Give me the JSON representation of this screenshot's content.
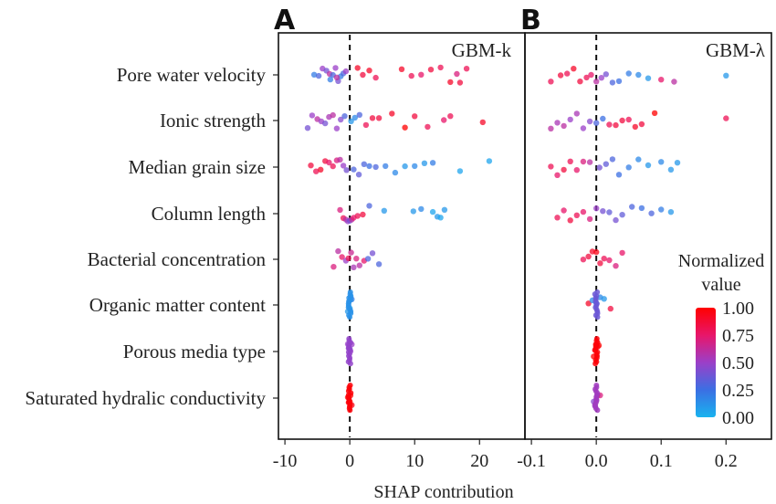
{
  "chart_data": [
    {
      "type": "scatter",
      "subtype": "shap_beeswarm",
      "panel_letter": "A",
      "model_label": "GBM-k",
      "xlim": [
        -11,
        27
      ],
      "xticks": [
        -10,
        0,
        10,
        20
      ],
      "xtick_labels": [
        "-10",
        "0",
        "10",
        "20"
      ],
      "zero_line": true,
      "features": [
        {
          "name": "Pore water velocity",
          "points": [
            [
              -5.5,
              0.2
            ],
            [
              -4.8,
              0.3
            ],
            [
              -4.2,
              0.5
            ],
            [
              -3.6,
              0.4
            ],
            [
              -3.1,
              0.6
            ],
            [
              -2.6,
              0.3
            ],
            [
              -2.2,
              0.5
            ],
            [
              -1.8,
              0.4
            ],
            [
              -1.4,
              0.2
            ],
            [
              -1.0,
              0.3
            ],
            [
              -0.6,
              0.5
            ],
            [
              -3.0,
              0.2
            ],
            [
              -2.0,
              0.6
            ],
            [
              1.2,
              0.9
            ],
            [
              2.0,
              0.85
            ],
            [
              3.0,
              0.9
            ],
            [
              4.0,
              0.8
            ],
            [
              8.0,
              0.9
            ],
            [
              9.5,
              0.8
            ],
            [
              11.0,
              0.75
            ],
            [
              12.5,
              0.85
            ],
            [
              14.0,
              0.8
            ],
            [
              15.5,
              0.9
            ],
            [
              17.0,
              0.85
            ],
            [
              18.0,
              0.8
            ],
            [
              16.5,
              0.7
            ]
          ]
        },
        {
          "name": "Ionic strength",
          "points": [
            [
              -6.5,
              0.4
            ],
            [
              -5.8,
              0.5
            ],
            [
              -5.0,
              0.6
            ],
            [
              -4.4,
              0.5
            ],
            [
              -3.8,
              0.4
            ],
            [
              -3.2,
              0.55
            ],
            [
              -2.6,
              0.6
            ],
            [
              -2.0,
              0.5
            ],
            [
              -1.4,
              0.45
            ],
            [
              -0.8,
              0.3
            ],
            [
              0.2,
              0.1
            ],
            [
              0.8,
              0.15
            ],
            [
              1.5,
              0.3
            ],
            [
              2.5,
              0.8
            ],
            [
              3.5,
              0.85
            ],
            [
              4.5,
              0.85
            ],
            [
              6.5,
              0.9
            ],
            [
              8.5,
              1.0
            ],
            [
              10.0,
              0.85
            ],
            [
              12.0,
              0.8
            ],
            [
              14.5,
              0.75
            ],
            [
              15.5,
              0.8
            ],
            [
              20.5,
              0.9
            ]
          ]
        },
        {
          "name": "Median grain size",
          "points": [
            [
              -6.0,
              0.85
            ],
            [
              -5.2,
              0.8
            ],
            [
              -4.5,
              0.9
            ],
            [
              -3.8,
              0.85
            ],
            [
              -3.2,
              0.75
            ],
            [
              -2.6,
              0.8
            ],
            [
              -2.0,
              0.7
            ],
            [
              -1.5,
              0.6
            ],
            [
              -1.0,
              0.5
            ],
            [
              -0.5,
              0.4
            ],
            [
              0.6,
              0.3
            ],
            [
              1.4,
              0.35
            ],
            [
              2.2,
              0.3
            ],
            [
              3.0,
              0.25
            ],
            [
              4.0,
              0.3
            ],
            [
              5.5,
              0.2
            ],
            [
              7.0,
              0.15
            ],
            [
              8.5,
              0.1
            ],
            [
              10.0,
              0.15
            ],
            [
              11.5,
              0.1
            ],
            [
              12.8,
              0.2
            ],
            [
              17.0,
              0.05
            ],
            [
              21.5,
              0.05
            ]
          ]
        },
        {
          "name": "Column length",
          "points": [
            [
              -1.5,
              0.7
            ],
            [
              -1.0,
              0.8
            ],
            [
              -0.6,
              0.6
            ],
            [
              -0.3,
              0.5
            ],
            [
              0.0,
              0.4
            ],
            [
              0.3,
              0.6
            ],
            [
              0.6,
              0.75
            ],
            [
              1.2,
              0.8
            ],
            [
              2.0,
              0.85
            ],
            [
              3.0,
              0.3
            ],
            [
              5.3,
              0.1
            ],
            [
              9.8,
              0.1
            ],
            [
              11.0,
              0.15
            ],
            [
              12.8,
              0.05
            ],
            [
              13.5,
              0.1
            ],
            [
              14.0,
              0.05
            ],
            [
              14.6,
              0.1
            ]
          ]
        },
        {
          "name": "Bacterial concentration",
          "points": [
            [
              -2.5,
              0.7
            ],
            [
              -1.8,
              0.6
            ],
            [
              -1.2,
              0.75
            ],
            [
              -0.6,
              0.5
            ],
            [
              -0.2,
              0.8
            ],
            [
              0.2,
              0.65
            ],
            [
              0.6,
              0.55
            ],
            [
              1.0,
              0.7
            ],
            [
              1.5,
              0.6
            ],
            [
              2.2,
              0.75
            ],
            [
              2.8,
              0.3
            ],
            [
              3.5,
              0.4
            ],
            [
              4.5,
              0.3
            ]
          ]
        },
        {
          "name": "Organic matter content",
          "points": [
            [
              -0.3,
              0.1
            ],
            [
              -0.1,
              0.15
            ],
            [
              0.1,
              0.1
            ],
            [
              0.3,
              0.2
            ],
            [
              0.0,
              0.05
            ]
          ]
        },
        {
          "name": "Porous media type",
          "points": [
            [
              -0.3,
              0.5
            ],
            [
              -0.1,
              0.45
            ],
            [
              0.1,
              0.5
            ],
            [
              0.3,
              0.5
            ],
            [
              0.0,
              0.45
            ]
          ]
        },
        {
          "name": "Saturated hydralic conductivity",
          "points": [
            [
              -0.3,
              1.0
            ],
            [
              -0.1,
              0.95
            ],
            [
              0.1,
              1.0
            ],
            [
              0.3,
              0.95
            ],
            [
              0.0,
              1.0
            ]
          ]
        }
      ]
    },
    {
      "type": "scatter",
      "subtype": "shap_beeswarm",
      "panel_letter": "B",
      "model_label": "GBM-λ",
      "xlim": [
        -0.11,
        0.27
      ],
      "xticks": [
        -0.1,
        0.0,
        0.1,
        0.2
      ],
      "xtick_labels": [
        "-0.1",
        "0.0",
        "0.1",
        "0.2"
      ],
      "zero_line": true,
      "features": [
        {
          "name": "Pore water velocity",
          "points": [
            [
              -0.07,
              0.8
            ],
            [
              -0.055,
              0.85
            ],
            [
              -0.045,
              0.8
            ],
            [
              -0.035,
              0.9
            ],
            [
              -0.025,
              0.85
            ],
            [
              -0.015,
              0.8
            ],
            [
              -0.008,
              0.75
            ],
            [
              0.0,
              0.6
            ],
            [
              0.008,
              0.5
            ],
            [
              0.015,
              0.4
            ],
            [
              0.025,
              0.3
            ],
            [
              0.035,
              0.25
            ],
            [
              0.05,
              0.2
            ],
            [
              0.065,
              0.15
            ],
            [
              0.08,
              0.1
            ],
            [
              0.1,
              0.75
            ],
            [
              0.12,
              0.6
            ],
            [
              0.2,
              0.1
            ]
          ]
        },
        {
          "name": "Ionic strength",
          "points": [
            [
              -0.07,
              0.6
            ],
            [
              -0.06,
              0.55
            ],
            [
              -0.05,
              0.6
            ],
            [
              -0.04,
              0.5
            ],
            [
              -0.03,
              0.55
            ],
            [
              -0.02,
              0.5
            ],
            [
              -0.01,
              0.45
            ],
            [
              0.0,
              0.3
            ],
            [
              0.01,
              0.25
            ],
            [
              0.02,
              0.8
            ],
            [
              0.03,
              0.85
            ],
            [
              0.04,
              0.85
            ],
            [
              0.05,
              0.8
            ],
            [
              0.06,
              0.9
            ],
            [
              0.07,
              0.85
            ],
            [
              0.09,
              1.0
            ],
            [
              0.2,
              0.8
            ]
          ]
        },
        {
          "name": "Median grain size",
          "points": [
            [
              -0.07,
              0.8
            ],
            [
              -0.06,
              0.75
            ],
            [
              -0.05,
              0.85
            ],
            [
              -0.04,
              0.8
            ],
            [
              -0.03,
              0.75
            ],
            [
              -0.02,
              0.7
            ],
            [
              -0.01,
              0.6
            ],
            [
              0.005,
              0.4
            ],
            [
              0.015,
              0.35
            ],
            [
              0.025,
              0.3
            ],
            [
              0.035,
              0.25
            ],
            [
              0.05,
              0.2
            ],
            [
              0.065,
              0.15
            ],
            [
              0.08,
              0.1
            ],
            [
              0.1,
              0.15
            ],
            [
              0.115,
              0.1
            ],
            [
              0.125,
              0.1
            ]
          ]
        },
        {
          "name": "Column length",
          "points": [
            [
              -0.06,
              0.8
            ],
            [
              -0.05,
              0.75
            ],
            [
              -0.04,
              0.85
            ],
            [
              -0.03,
              0.8
            ],
            [
              -0.02,
              0.75
            ],
            [
              -0.01,
              0.7
            ],
            [
              0.0,
              0.5
            ],
            [
              0.01,
              0.4
            ],
            [
              0.02,
              0.35
            ],
            [
              0.03,
              0.4
            ],
            [
              0.04,
              0.35
            ],
            [
              0.055,
              0.3
            ],
            [
              0.07,
              0.25
            ],
            [
              0.085,
              0.3
            ],
            [
              0.1,
              0.2
            ],
            [
              0.115,
              0.1
            ]
          ]
        },
        {
          "name": "Bacterial concentration",
          "points": [
            [
              -0.02,
              0.8
            ],
            [
              -0.012,
              0.85
            ],
            [
              -0.006,
              0.9
            ],
            [
              0.0,
              0.95
            ],
            [
              0.006,
              0.85
            ],
            [
              0.012,
              0.8
            ],
            [
              0.02,
              0.75
            ],
            [
              0.03,
              0.7
            ],
            [
              0.04,
              0.75
            ]
          ]
        },
        {
          "name": "Organic matter content",
          "points": [
            [
              -0.012,
              0.9
            ],
            [
              -0.006,
              0.15
            ],
            [
              0.0,
              0.1
            ],
            [
              0.006,
              0.15
            ],
            [
              0.012,
              0.1
            ],
            [
              0.022,
              0.85
            ]
          ]
        },
        {
          "name": "Porous media type",
          "points": [
            [
              -0.004,
              1.0
            ],
            [
              -0.002,
              0.95
            ],
            [
              0.0,
              1.0
            ],
            [
              0.002,
              0.95
            ],
            [
              0.004,
              1.0
            ]
          ]
        },
        {
          "name": "Saturated hydralic conductivity",
          "points": [
            [
              -0.004,
              0.45
            ],
            [
              -0.002,
              0.5
            ],
            [
              0.0,
              0.45
            ],
            [
              0.002,
              0.5
            ],
            [
              0.006,
              0.7
            ]
          ]
        }
      ]
    }
  ],
  "xlabel": "SHAP contribution",
  "colorbar": {
    "title_line1": "Normalized",
    "title_line2": "value",
    "ticks": [
      1.0,
      0.75,
      0.5,
      0.25,
      0.0
    ],
    "tick_labels": [
      "1.00",
      "0.75",
      "0.50",
      "0.25",
      "0.00"
    ],
    "colors": [
      "#ff0000",
      "#e8166a",
      "#9b3fc8",
      "#3b6fe3",
      "#19b3ef"
    ]
  }
}
